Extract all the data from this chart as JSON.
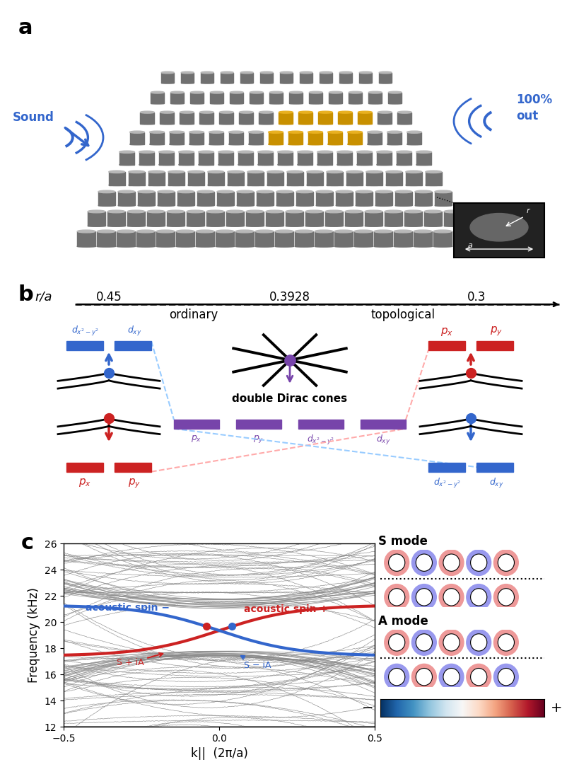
{
  "fig_width": 8.0,
  "fig_height": 10.54,
  "bg_color": "#ffffff",
  "panel_a_label": "a",
  "panel_b_label": "b",
  "panel_c_label": "c",
  "ra_values": [
    "0.45",
    "0.3928",
    "0.3"
  ],
  "ra_label": "r/a",
  "ordinary_label": "ordinary",
  "topological_label": "topological",
  "double_dirac_label": "double Dirac cones",
  "blue_color": "#3366cc",
  "red_color": "#cc2222",
  "purple_color": "#7744aa",
  "gray_color": "#aaaaaa",
  "sound_label": "Sound",
  "spin_minus_label": "acoustic spin −",
  "spin_plus_label": "acoustic spin +",
  "S_plus_iA_label": "S + iA",
  "S_minus_iA_label": "S − iA",
  "freq_ylabel": "Frequency (kHz)",
  "kpar_xlabel": "k||  (2π/a)",
  "freq_min": 12,
  "freq_max": 26,
  "kpar_min": -0.5,
  "kpar_max": 0.5,
  "S_mode_label": "S mode",
  "A_mode_label": "A mode",
  "cyl_dark": "#707070",
  "cyl_mid": "#909090",
  "cyl_light": "#b8b8b8",
  "cyl_gold": "#c89000",
  "cyl_gold_top": "#e8b020"
}
